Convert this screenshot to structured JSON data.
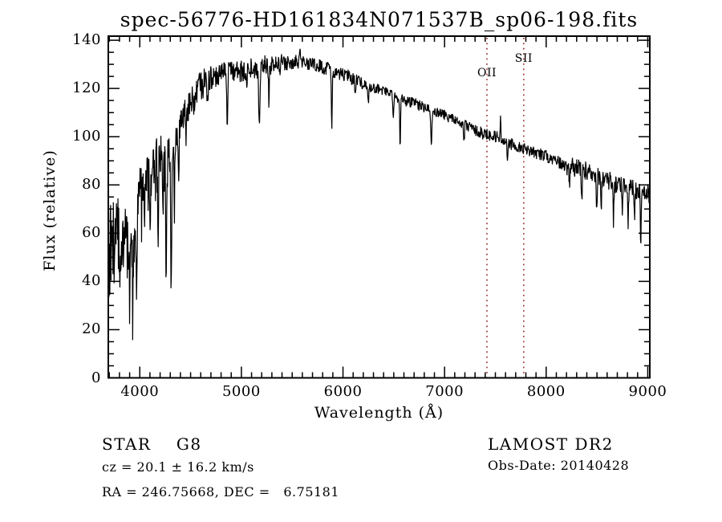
{
  "title": "spec-56776-HD161834N071537B_sp06-198.fits",
  "axes": {
    "xlabel": "Wavelength (Å)",
    "ylabel": "Flux (relative)",
    "xlim": [
      3690,
      9020
    ],
    "ylim": [
      0,
      141.7
    ],
    "x_major_ticks": [
      4000,
      5000,
      6000,
      7000,
      8000,
      9000
    ],
    "x_minor_step": 100,
    "y_major_ticks": [
      0,
      20,
      40,
      60,
      80,
      100,
      120,
      140
    ],
    "y_minor_step": 5
  },
  "line_markers": {
    "color": "#993333",
    "items": [
      {
        "label": "OII",
        "wavelength": 7417,
        "label_y": 91
      },
      {
        "label": "SII",
        "wavelength": 7779,
        "label_y": 73
      }
    ]
  },
  "footer": {
    "class_line": "STAR    G8",
    "cz_line": "cz = 20.1 ± 16.2 km/s",
    "radec_line": "RA = 246.75668, DEC =   6.75181",
    "survey": "LAMOST DR2",
    "obsdate_line": "Obs-Date: 20140428"
  },
  "chart_data": {
    "type": "line",
    "title": "spec-56776-HD161834N071537B_sp06-198.fits",
    "xlabel": "Wavelength (Å)",
    "ylabel": "Flux (relative)",
    "xlim": [
      3690,
      9020
    ],
    "ylim": [
      0,
      140
    ],
    "legend": "none",
    "grid": false,
    "series": [
      {
        "name": "continuum-envelope",
        "x": [
          3690,
          3720,
          3750,
          3780,
          3810,
          3840,
          3870,
          3900,
          3930,
          3960,
          4000,
          4050,
          4100,
          4150,
          4200,
          4250,
          4300,
          4350,
          4400,
          4450,
          4500,
          4600,
          4700,
          4800,
          4900,
          5000,
          5100,
          5200,
          5300,
          5400,
          5500,
          5600,
          5700,
          5800,
          5900,
          6000,
          6100,
          6200,
          6300,
          6400,
          6500,
          6600,
          6700,
          6800,
          6900,
          7000,
          7100,
          7200,
          7300,
          7400,
          7500,
          7600,
          7700,
          7800,
          7900,
          8000,
          8100,
          8200,
          8300,
          8400,
          8500,
          8600,
          8700,
          8800,
          8900,
          8950,
          9000,
          9020
        ],
        "y": [
          48,
          55,
          52,
          58,
          54,
          60,
          57,
          62,
          60,
          68,
          78,
          84,
          88,
          90,
          92,
          90,
          92,
          100,
          106,
          110,
          115,
          121,
          124,
          126,
          127,
          127,
          128,
          129,
          130,
          130,
          131,
          131,
          130,
          129,
          127,
          126,
          124,
          122,
          120,
          119,
          117,
          115,
          114,
          112,
          110,
          109,
          107,
          105,
          103,
          101,
          100,
          98,
          96,
          95,
          93,
          92,
          90,
          88,
          87,
          86,
          84,
          82,
          80,
          79,
          78,
          77,
          77,
          76
        ]
      }
    ],
    "spectral_features": [
      {
        "wavelength": 3900,
        "depth": -28,
        "width": 6
      },
      {
        "wavelength": 3933,
        "depth": -32,
        "width": 6
      },
      {
        "wavelength": 3968,
        "depth": -30,
        "width": 6
      },
      {
        "wavelength": 4045,
        "depth": -18,
        "width": 5
      },
      {
        "wavelength": 4101,
        "depth": -22,
        "width": 5
      },
      {
        "wavelength": 4150,
        "depth": -15,
        "width": 5
      },
      {
        "wavelength": 4180,
        "depth": -40,
        "width": 4
      },
      {
        "wavelength": 4227,
        "depth": -25,
        "width": 4
      },
      {
        "wavelength": 4260,
        "depth": -50,
        "width": 4
      },
      {
        "wavelength": 4310,
        "depth": -55,
        "width": 5
      },
      {
        "wavelength": 4340,
        "depth": -25,
        "width": 4
      },
      {
        "wavelength": 4383,
        "depth": -20,
        "width": 4
      },
      {
        "wavelength": 4455,
        "depth": -15,
        "width": 4
      },
      {
        "wavelength": 4530,
        "depth": -12,
        "width": 4
      },
      {
        "wavelength": 4668,
        "depth": -10,
        "width": 4
      },
      {
        "wavelength": 4861,
        "depth": -28,
        "width": 4
      },
      {
        "wavelength": 5050,
        "depth": -8,
        "width": 4
      },
      {
        "wavelength": 5175,
        "depth": -26,
        "width": 6
      },
      {
        "wavelength": 5270,
        "depth": -14,
        "width": 4
      },
      {
        "wavelength": 5577,
        "depth": 9,
        "width": 3
      },
      {
        "wavelength": 5890,
        "depth": -24,
        "width": 4
      },
      {
        "wavelength": 6122,
        "depth": -8,
        "width": 4
      },
      {
        "wavelength": 6250,
        "depth": -7,
        "width": 4
      },
      {
        "wavelength": 6495,
        "depth": -8,
        "width": 4
      },
      {
        "wavelength": 6563,
        "depth": -20,
        "width": 4
      },
      {
        "wavelength": 6870,
        "depth": -12,
        "width": 5
      },
      {
        "wavelength": 7190,
        "depth": -9,
        "width": 5
      },
      {
        "wavelength": 7550,
        "depth": 11,
        "width": 3
      },
      {
        "wavelength": 7620,
        "depth": -8,
        "width": 5
      },
      {
        "wavelength": 8230,
        "depth": -8,
        "width": 4
      },
      {
        "wavelength": 8350,
        "depth": -14,
        "width": 4
      },
      {
        "wavelength": 8498,
        "depth": -14,
        "width": 4
      },
      {
        "wavelength": 8542,
        "depth": -16,
        "width": 4
      },
      {
        "wavelength": 8662,
        "depth": -16,
        "width": 4
      },
      {
        "wavelength": 8750,
        "depth": -13,
        "width": 4
      },
      {
        "wavelength": 8806,
        "depth": -15,
        "width": 4
      },
      {
        "wavelength": 8870,
        "depth": -10,
        "width": 4
      },
      {
        "wavelength": 8930,
        "depth": -22,
        "width": 4
      }
    ],
    "noise_segments": [
      {
        "from": 3690,
        "to": 3800,
        "amplitude": 20
      },
      {
        "from": 3800,
        "to": 3950,
        "amplitude": 14
      },
      {
        "from": 3950,
        "to": 4300,
        "amplitude": 9
      },
      {
        "from": 4300,
        "to": 4700,
        "amplitude": 6.5
      },
      {
        "from": 4700,
        "to": 5400,
        "amplitude": 4.5
      },
      {
        "from": 5400,
        "to": 6200,
        "amplitude": 3
      },
      {
        "from": 6200,
        "to": 7300,
        "amplitude": 2.3
      },
      {
        "from": 7300,
        "to": 8200,
        "amplitude": 2.6
      },
      {
        "from": 8200,
        "to": 9020,
        "amplitude": 4
      }
    ]
  }
}
